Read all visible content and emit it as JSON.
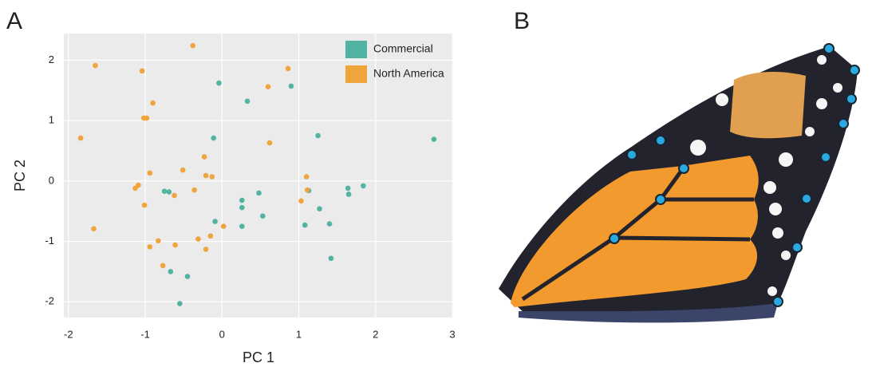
{
  "chart_data": {
    "type": "scatter",
    "panel_label": "A",
    "x_label": "PC 1",
    "y_label": "PC 2",
    "xlim": [
      -2.06,
      3.01
    ],
    "ylim": [
      -2.26,
      2.44
    ],
    "xticks": [
      -2,
      -1,
      0,
      1,
      2,
      3
    ],
    "yticks": [
      -2,
      -1,
      0,
      1,
      2
    ],
    "grid": true,
    "legend": "top-right",
    "series": [
      {
        "name": "Commercial",
        "color": "#52b3a2",
        "x": [
          -0.04,
          0.9,
          0.33,
          2.76,
          -0.11,
          1.25,
          -0.75,
          -0.69,
          0.26,
          0.26,
          0.48,
          1.13,
          1.84,
          1.64,
          1.65,
          1.27,
          0.53,
          -0.09,
          0.26,
          1.08,
          1.4,
          1.42,
          -0.67,
          -0.45,
          -0.55
        ],
        "values": [
          1.62,
          1.57,
          1.32,
          0.69,
          0.71,
          0.75,
          -0.17,
          -0.18,
          -0.32,
          -0.44,
          -0.2,
          -0.16,
          -0.08,
          -0.12,
          -0.22,
          -0.46,
          -0.58,
          -0.67,
          -0.75,
          -0.73,
          -0.71,
          -1.28,
          -1.5,
          -1.58,
          -2.03
        ]
      },
      {
        "name": "North America",
        "color": "#efa43c",
        "x": [
          -1.65,
          -0.38,
          -1.04,
          0.86,
          -0.9,
          -1.02,
          -0.98,
          -1.84,
          0.6,
          0.62,
          -0.23,
          -0.51,
          -0.94,
          -0.21,
          -0.13,
          1.1,
          -1.09,
          -1.13,
          -0.36,
          -0.62,
          1.11,
          1.03,
          -1.01,
          -1.67,
          0.02,
          -0.15,
          -0.31,
          -0.83,
          -0.94,
          -0.61,
          -0.21,
          -0.77
        ],
        "values": [
          1.91,
          2.24,
          1.82,
          1.86,
          1.29,
          1.04,
          1.04,
          0.71,
          1.56,
          0.63,
          0.4,
          0.18,
          0.13,
          0.09,
          0.07,
          0.07,
          -0.07,
          -0.12,
          -0.15,
          -0.24,
          -0.15,
          -0.33,
          -0.4,
          -0.79,
          -0.75,
          -0.91,
          -0.96,
          -0.99,
          -1.09,
          -1.06,
          -1.13,
          -1.4
        ]
      }
    ]
  },
  "figure_b": {
    "panel_label": "B"
  }
}
